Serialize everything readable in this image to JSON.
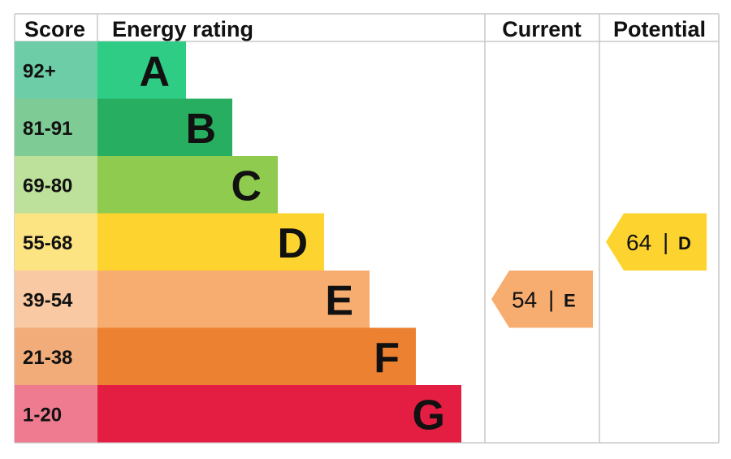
{
  "chart_data": {
    "type": "bar",
    "headers": {
      "score": "Score",
      "energy_rating": "Energy rating",
      "current": "Current",
      "potential": "Potential"
    },
    "bands": [
      {
        "score": "92+",
        "letter": "A",
        "color": "#2ecc84",
        "score_color": "#6ccda7"
      },
      {
        "score": "81-91",
        "letter": "B",
        "color": "#27ae60",
        "score_color": "#7fcb95"
      },
      {
        "score": "69-80",
        "letter": "C",
        "color": "#8ecb4e",
        "score_color": "#bde09a"
      },
      {
        "score": "55-68",
        "letter": "D",
        "color": "#fdd42f",
        "score_color": "#fce482"
      },
      {
        "score": "39-54",
        "letter": "E",
        "color": "#f6ad6f",
        "score_color": "#f8c9a2"
      },
      {
        "score": "21-38",
        "letter": "F",
        "color": "#ec8132",
        "score_color": "#f1ac7a"
      },
      {
        "score": "1-20",
        "letter": "G",
        "color": "#e31e42",
        "score_color": "#ee7b90"
      }
    ],
    "current": {
      "value": 54,
      "separator": "|",
      "band": "E",
      "color": "#f6ad6f"
    },
    "potential": {
      "value": 64,
      "separator": "|",
      "band": "D",
      "color": "#fdd42f"
    }
  }
}
